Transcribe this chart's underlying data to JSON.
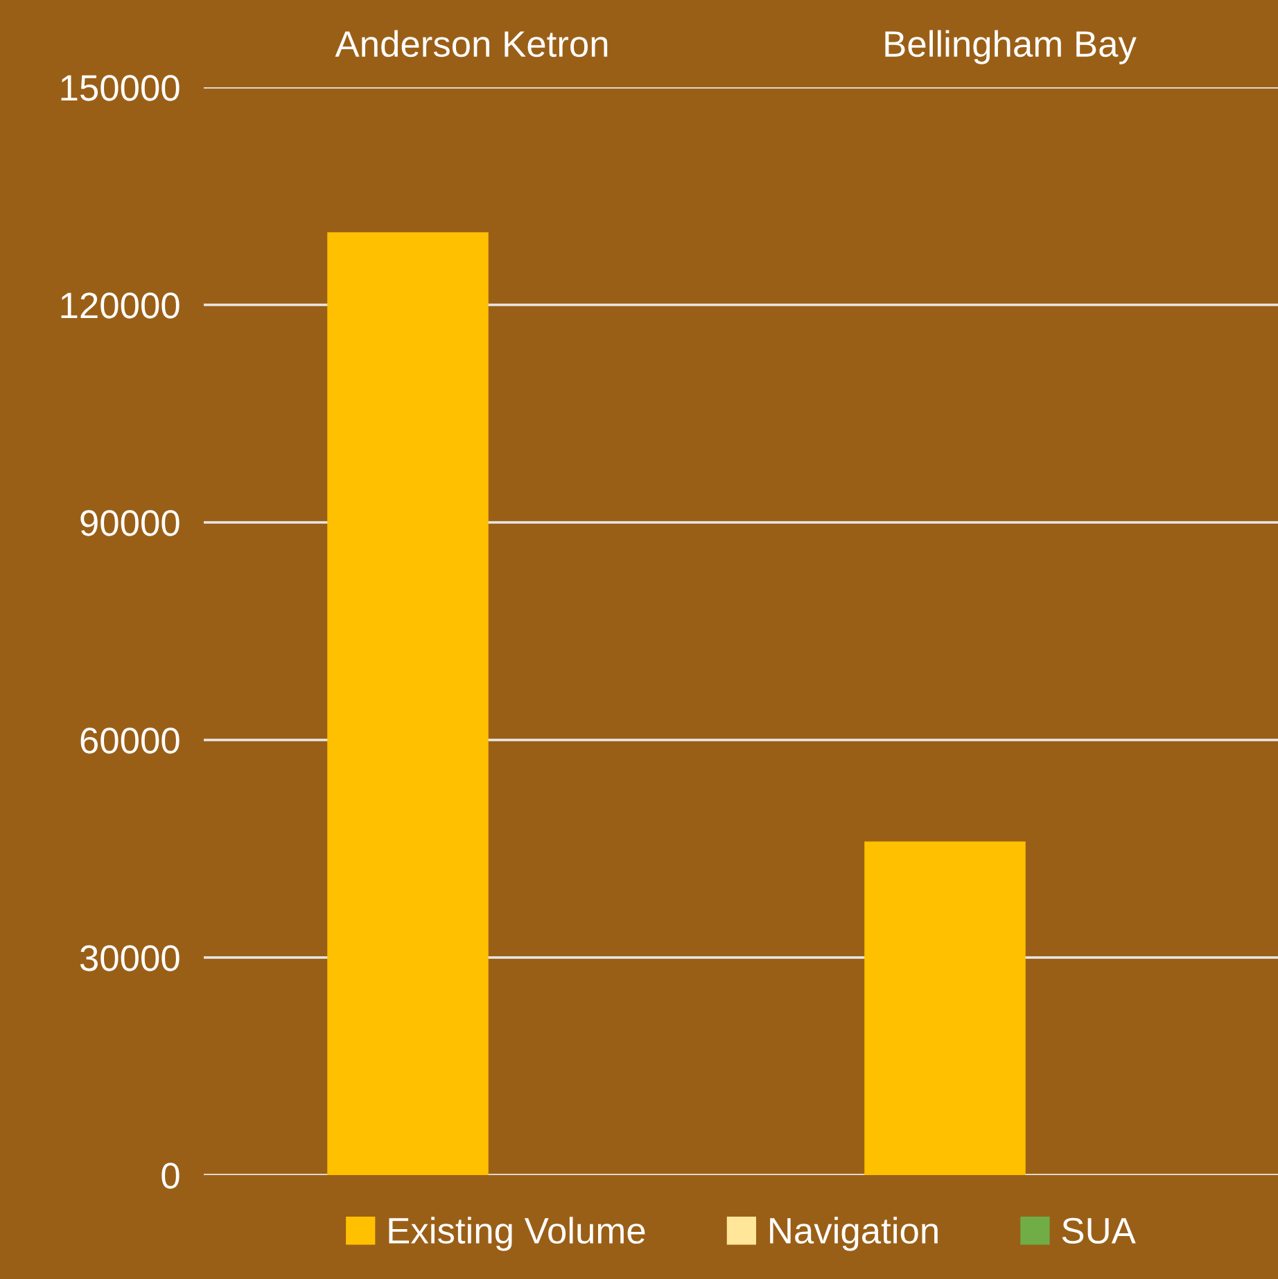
{
  "chart_data": {
    "type": "bar",
    "categories": [
      "Anderson Ketron",
      "Bellingham Bay"
    ],
    "series": [
      {
        "name": "Existing Volume",
        "color": "#ffc000",
        "values": [
          130000,
          46000
        ]
      },
      {
        "name": "Navigation",
        "color": "#ffe699",
        "values": [
          null,
          null
        ]
      },
      {
        "name": "SUA",
        "color": "#70ad47",
        "values": [
          null,
          null
        ]
      }
    ],
    "ylim": [
      0,
      150000
    ],
    "yticks": [
      0,
      30000,
      60000,
      90000,
      120000,
      150000
    ],
    "grid": "y",
    "legend": "bottom"
  }
}
